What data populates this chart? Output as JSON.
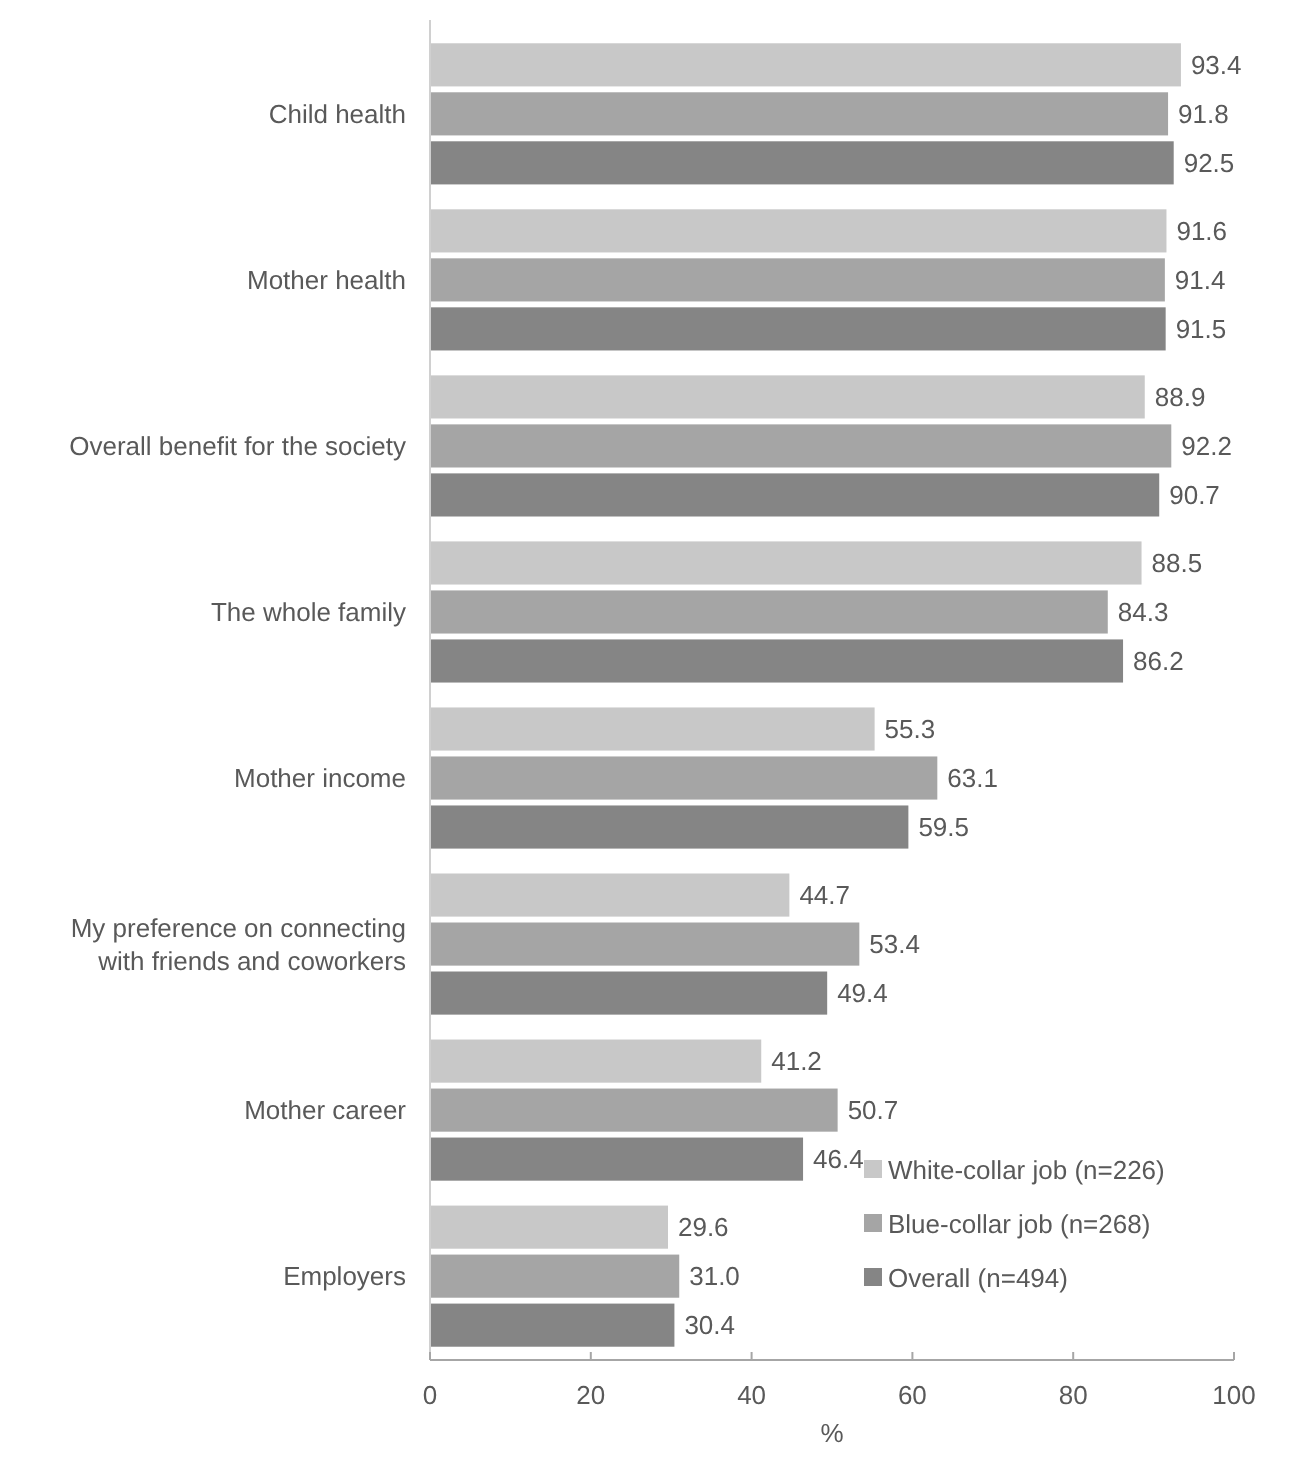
{
  "chart_data": {
    "type": "bar",
    "orientation": "horizontal",
    "xlabel": "%",
    "categories": [
      "Child health",
      "Mother health",
      "Overall benefit for the society",
      "The whole family",
      "Mother income",
      "My preference on connecting with friends and coworkers",
      "Mother career",
      "Employers"
    ],
    "series": [
      {
        "name": "White-collar job (n=226)",
        "color": "#c8c8c8",
        "values": [
          93.4,
          91.6,
          88.9,
          88.5,
          55.3,
          44.7,
          41.2,
          29.6
        ]
      },
      {
        "name": "Blue-collar job (n=268)",
        "color": "#a5a5a5",
        "values": [
          91.8,
          91.4,
          92.2,
          84.3,
          63.1,
          53.4,
          50.7,
          31.0
        ]
      },
      {
        "name": "Overall (n=494)",
        "color": "#858585",
        "values": [
          92.5,
          91.5,
          90.7,
          86.2,
          59.5,
          49.4,
          46.4,
          30.4
        ]
      }
    ],
    "value_labels": [
      [
        "93.4",
        "91.6",
        "88.9",
        "88.5",
        "55.3",
        "44.7",
        "41.2",
        "29.6"
      ],
      [
        "91.8",
        "91.4",
        "92.2",
        "84.3",
        "63.1",
        "53.4",
        "50.7",
        "31.0"
      ],
      [
        "92.5",
        "91.5",
        "90.7",
        "86.2",
        "59.5",
        "49.4",
        "46.4",
        "30.4"
      ]
    ],
    "xlim": [
      0,
      100
    ],
    "xticks": [
      0,
      20,
      40,
      60,
      80,
      100
    ],
    "grid": false,
    "legend": "bottom right"
  }
}
